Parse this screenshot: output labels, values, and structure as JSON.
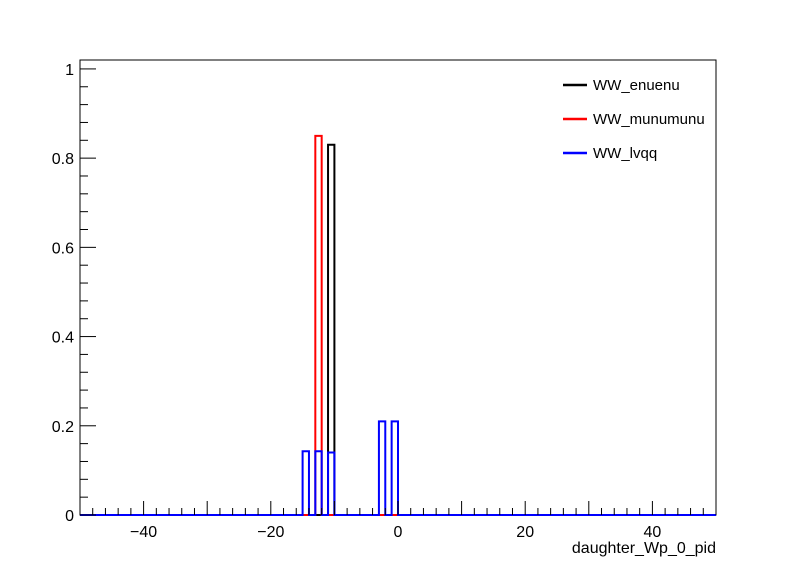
{
  "chart_data": {
    "type": "histogram",
    "xlabel": "daughter_Wp_0_pid",
    "ylabel": "",
    "xlim": [
      -50,
      50
    ],
    "ylim": [
      0,
      1.02
    ],
    "x_ticks": [
      -40,
      -20,
      0,
      20,
      40
    ],
    "y_ticks": [
      0,
      0.2,
      0.4,
      0.6,
      0.8,
      1
    ],
    "y_tick_labels": [
      "0",
      "0.2",
      "0.4",
      "0.6",
      "0.8",
      "1"
    ],
    "x_tick_labels": [
      "−40",
      "−20",
      "0",
      "20",
      "40"
    ],
    "bin_width": 1,
    "legend_position": "top-right",
    "grid": false,
    "series": [
      {
        "name": "WW_enuenu",
        "color": "#000000",
        "bins": [
          {
            "x0": -11,
            "value": 0.83
          }
        ]
      },
      {
        "name": "WW_munumunu",
        "color": "#ff0000",
        "bins": [
          {
            "x0": -13,
            "value": 0.85
          }
        ]
      },
      {
        "name": "WW_lvqq",
        "color": "#0000ff",
        "bins": [
          {
            "x0": -15,
            "value": 0.143
          },
          {
            "x0": -13,
            "value": 0.143
          },
          {
            "x0": -11,
            "value": 0.14
          },
          {
            "x0": -3,
            "value": 0.21
          },
          {
            "x0": -1,
            "value": 0.21
          }
        ]
      }
    ]
  }
}
